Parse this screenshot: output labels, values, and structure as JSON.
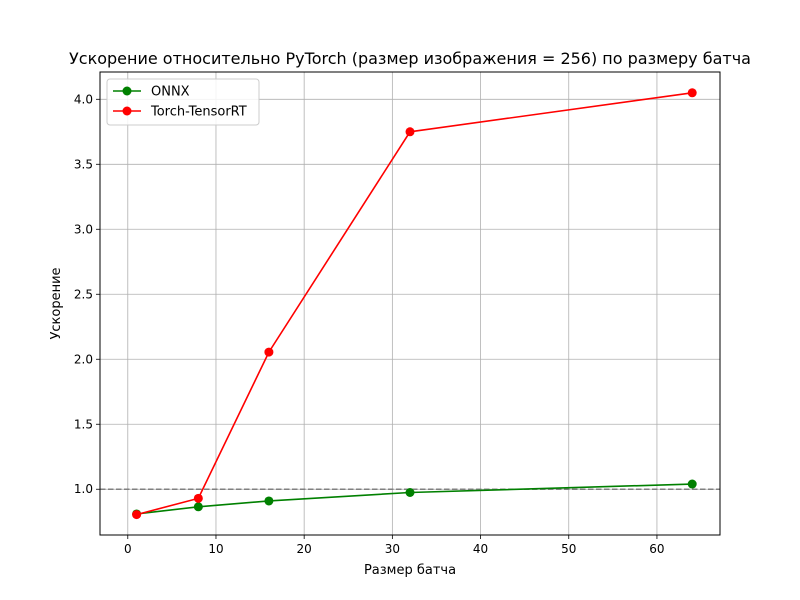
{
  "chart_data": {
    "type": "line",
    "title": "Ускорение относительно PyTorch (размер изображения = 256) по размеру батча",
    "xlabel": "Размер батча",
    "ylabel": "Ускорение",
    "xlim": [
      -3.15,
      67.15
    ],
    "ylim": [
      0.648,
      4.21
    ],
    "x_ticks": [
      0,
      10,
      20,
      30,
      40,
      50,
      60
    ],
    "y_ticks": [
      1.0,
      1.5,
      2.0,
      2.5,
      3.0,
      3.5,
      4.0
    ],
    "x_tick_labels": [
      "0",
      "10",
      "20",
      "30",
      "40",
      "50",
      "60"
    ],
    "y_tick_labels": [
      "1.0",
      "1.5",
      "2.0",
      "2.5",
      "3.0",
      "3.5",
      "4.0"
    ],
    "x": [
      1,
      8,
      16,
      32,
      64
    ],
    "series": [
      {
        "name": "ONNX",
        "color": "#008000",
        "values": [
          0.81,
          0.865,
          0.91,
          0.975,
          1.04
        ]
      },
      {
        "name": "Torch-TensorRT",
        "color": "#ff0000",
        "values": [
          0.805,
          0.93,
          2.055,
          3.75,
          4.05
        ]
      }
    ],
    "reference_line": {
      "y": 1.0,
      "style": "dashed",
      "color": "#808080"
    },
    "grid": true,
    "legend": "top-left"
  }
}
